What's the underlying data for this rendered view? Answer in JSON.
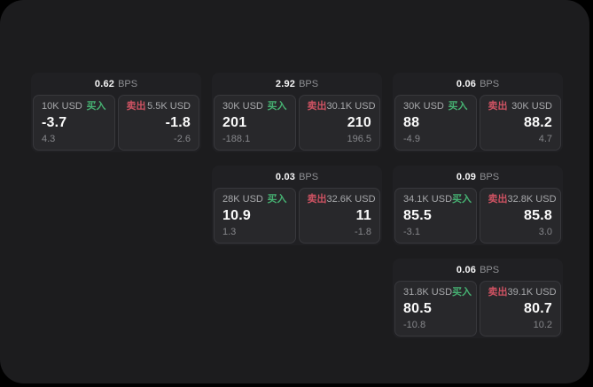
{
  "labels": {
    "bps_unit": "BPS",
    "buy": "买入",
    "sell": "卖出"
  },
  "colors": {
    "window_bg": "#1c1c1e",
    "card_bg": "#202023",
    "panel_bg": "#28282b",
    "buy_green": "#46b172",
    "sell_red": "#cd5262"
  },
  "cards": [
    {
      "bps": "0.62",
      "buy": {
        "amount": "10K USD",
        "price": "-3.7",
        "delta": "4.3"
      },
      "sell": {
        "amount": "5.5K USD",
        "price": "-1.8",
        "delta": "-2.6"
      }
    },
    {
      "bps": "2.92",
      "buy": {
        "amount": "30K USD",
        "price": "201",
        "delta": "-188.1"
      },
      "sell": {
        "amount": "30.1K USD",
        "price": "210",
        "delta": "196.5"
      }
    },
    {
      "bps": "0.06",
      "buy": {
        "amount": "30K USD",
        "price": "88",
        "delta": "-4.9"
      },
      "sell": {
        "amount": "30K USD",
        "price": "88.2",
        "delta": "4.7"
      }
    },
    {
      "bps": "0.03",
      "buy": {
        "amount": "28K USD",
        "price": "10.9",
        "delta": "1.3"
      },
      "sell": {
        "amount": "32.6K USD",
        "price": "11",
        "delta": "-1.8"
      }
    },
    {
      "bps": "0.09",
      "buy": {
        "amount": "34.1K USD",
        "price": "85.5",
        "delta": "-3.1"
      },
      "sell": {
        "amount": "32.8K USD",
        "price": "85.8",
        "delta": "3.0"
      }
    },
    {
      "bps": "0.06",
      "buy": {
        "amount": "31.8K USD",
        "price": "80.5",
        "delta": "-10.8"
      },
      "sell": {
        "amount": "39.1K USD",
        "price": "80.7",
        "delta": "10.2"
      }
    }
  ]
}
